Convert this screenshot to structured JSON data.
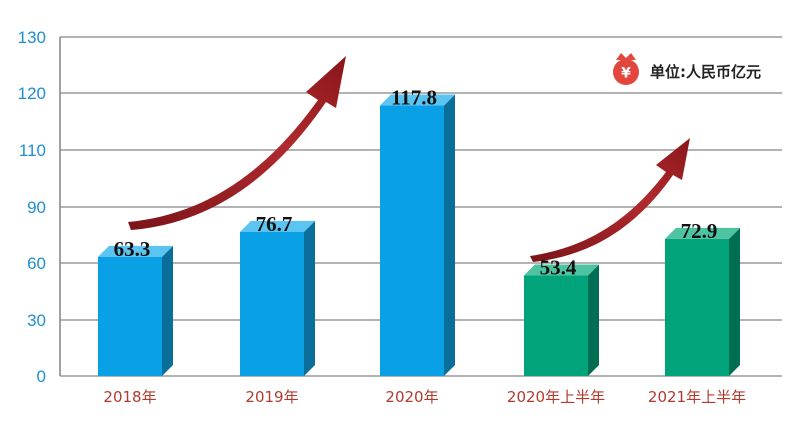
{
  "chart_data": {
    "type": "bar",
    "categories": [
      "2018年",
      "2019年",
      "2020年",
      "2020年上半年",
      "2021年上半年"
    ],
    "values": [
      63.3,
      76.7,
      117.8,
      53.4,
      72.9
    ],
    "value_labels": [
      "63.3",
      "76.7",
      "117.8",
      "53.4",
      "72.9"
    ],
    "y_ticks": [
      "0",
      "30",
      "60",
      "90",
      "110",
      "120",
      "130"
    ],
    "grid": true,
    "unit_label": "单位:人民币亿元",
    "unit_icon": "yuan-money-bag-icon",
    "legend_position": "top-right",
    "colors": {
      "annual": "#0aa0e6",
      "half_year": "#00a37a",
      "arrow": "#9b1c20",
      "tick_text": "#1f8fd0",
      "category_text": "#b23a2e"
    }
  }
}
